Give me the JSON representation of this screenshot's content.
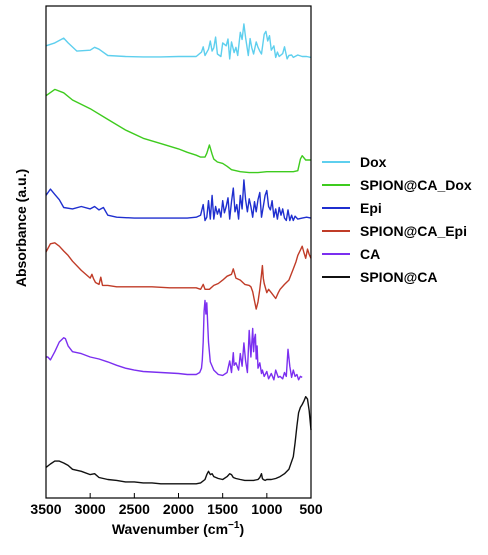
{
  "chart_data": {
    "type": "line",
    "xlabel": "Wavenumber (cm",
    "xlabel_sup": "−1",
    "xlabel_suffix": ")",
    "ylabel": "Absorbance (a.u.)",
    "xlim": [
      3500,
      500
    ],
    "x_reversed": true,
    "xticks": [
      3500,
      3000,
      2500,
      2000,
      1500,
      1000,
      500
    ],
    "ylim": [
      0,
      100
    ],
    "ytick_labels_shown": false,
    "legend_position": "right",
    "series": [
      {
        "name": "Dox",
        "color": "#5ecfee",
        "x": [
          3500,
          3400,
          3300,
          3250,
          3150,
          3000,
          2950,
          2900,
          2800,
          2600,
          2400,
          2200,
          2000,
          1800,
          1740,
          1720,
          1700,
          1660,
          1640,
          1620,
          1600,
          1580,
          1560,
          1520,
          1500,
          1460,
          1440,
          1420,
          1400,
          1370,
          1350,
          1330,
          1300,
          1280,
          1260,
          1240,
          1210,
          1190,
          1170,
          1150,
          1120,
          1100,
          1080,
          1060,
          1030,
          1010,
          990,
          970,
          950,
          920,
          900,
          880,
          860,
          820,
          800,
          770,
          750,
          720,
          700,
          650,
          600,
          550,
          500
        ],
        "y": [
          92.6,
          93.2,
          94.2,
          93.2,
          91.5,
          91.7,
          92.3,
          91.9,
          90.6,
          90.4,
          90.3,
          90.3,
          90.4,
          90.4,
          91.3,
          92.4,
          90.6,
          91.9,
          93.6,
          91.5,
          92.2,
          94.4,
          90.9,
          90.4,
          93.2,
          92.6,
          94.0,
          89.9,
          93.4,
          91.2,
          92.3,
          90.6,
          95.4,
          93.9,
          97.1,
          94.3,
          90.6,
          94.1,
          92.2,
          90.9,
          93.4,
          92.3,
          91.5,
          90.9,
          95.0,
          95.6,
          93.6,
          94.7,
          91.7,
          92.6,
          90.2,
          91.3,
          90.4,
          91.0,
          92.4,
          89.9,
          90.6,
          90.7,
          90.2,
          90.7,
          90.4,
          90.4,
          90.2
        ]
      },
      {
        "name": "SPION@CA_Dox",
        "color": "#3ecb1e",
        "x": [
          3500,
          3400,
          3300,
          3200,
          3000,
          2800,
          2600,
          2400,
          2200,
          2000,
          1900,
          1800,
          1750,
          1700,
          1680,
          1650,
          1640,
          1620,
          1600,
          1560,
          1500,
          1450,
          1400,
          1300,
          1200,
          1100,
          1000,
          900,
          800,
          700,
          650,
          620,
          600,
          560,
          500
        ],
        "y": [
          82.3,
          83.6,
          82.9,
          81.4,
          79.6,
          77.4,
          75.2,
          73.5,
          72.4,
          71.3,
          70.6,
          70.0,
          69.6,
          69.6,
          70.4,
          72.1,
          71.5,
          70.2,
          69.2,
          68.6,
          68.3,
          67.7,
          67.0,
          66.6,
          66.4,
          66.4,
          66.6,
          66.6,
          66.6,
          66.6,
          66.8,
          69.2,
          69.9,
          69.0,
          69.0
        ]
      },
      {
        "name": "Epi",
        "color": "#1f2fcf",
        "x": [
          3500,
          3450,
          3400,
          3350,
          3300,
          3200,
          3100,
          3000,
          2950,
          2900,
          2850,
          2800,
          2700,
          2500,
          2300,
          2100,
          1900,
          1800,
          1750,
          1720,
          1700,
          1680,
          1660,
          1640,
          1620,
          1600,
          1580,
          1560,
          1540,
          1520,
          1500,
          1480,
          1460,
          1440,
          1420,
          1400,
          1380,
          1360,
          1340,
          1320,
          1300,
          1280,
          1260,
          1240,
          1220,
          1200,
          1180,
          1160,
          1140,
          1120,
          1100,
          1080,
          1060,
          1040,
          1020,
          1000,
          980,
          960,
          940,
          920,
          900,
          880,
          860,
          840,
          820,
          800,
          780,
          760,
          740,
          720,
          700,
          680,
          650,
          600,
          550,
          500
        ],
        "y": [
          61.7,
          63.0,
          61.9,
          60.8,
          59.2,
          58.9,
          59.4,
          58.9,
          59.4,
          58.7,
          59.2,
          57.6,
          57.2,
          57.0,
          57.0,
          57.0,
          57.0,
          57.2,
          57.6,
          59.8,
          56.5,
          57.2,
          60.6,
          56.8,
          61.7,
          56.8,
          59.4,
          57.8,
          58.9,
          57.2,
          60.6,
          58.1,
          59.4,
          61.2,
          56.8,
          60.4,
          63.2,
          58.3,
          59.8,
          56.8,
          61.7,
          58.9,
          64.9,
          60.8,
          58.3,
          61.0,
          59.4,
          57.2,
          60.4,
          58.3,
          60.8,
          62.3,
          57.2,
          59.4,
          61.7,
          62.7,
          59.4,
          58.7,
          60.6,
          57.2,
          58.9,
          56.8,
          59.2,
          57.6,
          58.9,
          57.0,
          56.5,
          58.7,
          56.5,
          57.6,
          56.5,
          57.4,
          56.8,
          57.0,
          57.2,
          57.0
        ]
      },
      {
        "name": "SPION@CA_Epi",
        "color": "#c03c28",
        "x": [
          3500,
          3450,
          3400,
          3350,
          3300,
          3250,
          3200,
          3100,
          3000,
          2980,
          2960,
          2940,
          2900,
          2880,
          2860,
          2800,
          2700,
          2500,
          2300,
          2100,
          1900,
          1800,
          1750,
          1720,
          1700,
          1650,
          1600,
          1550,
          1500,
          1450,
          1400,
          1380,
          1350,
          1300,
          1250,
          1200,
          1180,
          1160,
          1140,
          1120,
          1100,
          1080,
          1060,
          1050,
          1040,
          1030,
          1000,
          980,
          950,
          900,
          870,
          850,
          800,
          750,
          700,
          670,
          650,
          620,
          600,
          580,
          560,
          540,
          520,
          500
        ],
        "y": [
          50.0,
          51.7,
          51.9,
          51.2,
          50.2,
          49.3,
          48.1,
          46.2,
          44.6,
          45.4,
          44.4,
          43.7,
          43.3,
          44.8,
          43.1,
          43.1,
          42.8,
          42.8,
          42.8,
          42.6,
          42.6,
          42.6,
          42.3,
          43.3,
          42.3,
          42.3,
          43.1,
          43.5,
          44.2,
          45.0,
          45.4,
          46.5,
          44.6,
          44.2,
          43.3,
          43.1,
          42.8,
          41.8,
          39.9,
          38.2,
          39.7,
          42.3,
          45.4,
          47.2,
          44.6,
          43.5,
          41.6,
          42.3,
          41.6,
          40.4,
          41.6,
          42.3,
          43.3,
          44.2,
          46.5,
          48.0,
          49.3,
          50.4,
          51.2,
          49.9,
          48.7,
          50.6,
          49.5,
          48.7
        ]
      },
      {
        "name": "CA",
        "color": "#7b2ff0",
        "x": [
          3500,
          3480,
          3450,
          3400,
          3350,
          3300,
          3280,
          3250,
          3200,
          3100,
          3000,
          2900,
          2800,
          2700,
          2600,
          2500,
          2400,
          2200,
          2000,
          1900,
          1800,
          1760,
          1740,
          1730,
          1720,
          1710,
          1700,
          1690,
          1680,
          1670,
          1660,
          1640,
          1600,
          1550,
          1500,
          1450,
          1420,
          1400,
          1380,
          1370,
          1350,
          1320,
          1300,
          1280,
          1260,
          1240,
          1220,
          1200,
          1180,
          1160,
          1150,
          1140,
          1130,
          1120,
          1110,
          1100,
          1080,
          1060,
          1050,
          1030,
          1000,
          980,
          950,
          920,
          900,
          870,
          850,
          820,
          800,
          780,
          760,
          740,
          720,
          700,
          680,
          660,
          640,
          620,
          600
        ],
        "y": [
          28.3,
          28.3,
          27.7,
          29.4,
          31.4,
          32.3,
          32.1,
          30.6,
          29.4,
          29.0,
          28.3,
          27.9,
          27.3,
          26.6,
          26.0,
          25.6,
          25.3,
          25.1,
          24.9,
          24.7,
          24.7,
          25.1,
          26.0,
          27.7,
          31.4,
          37.8,
          40.0,
          37.2,
          39.5,
          35.1,
          31.4,
          27.3,
          25.6,
          24.7,
          24.5,
          25.1,
          27.5,
          25.1,
          29.2,
          26.6,
          27.1,
          25.6,
          29.0,
          26.4,
          31.2,
          27.5,
          25.1,
          33.8,
          28.3,
          34.2,
          29.4,
          32.1,
          33.0,
          27.9,
          30.6,
          26.0,
          27.1,
          24.9,
          25.6,
          24.3,
          25.3,
          23.8,
          24.9,
          23.6,
          25.6,
          24.1,
          24.3,
          23.8,
          25.1,
          24.3,
          29.9,
          26.4,
          24.1,
          25.6,
          24.3,
          24.7,
          23.6,
          24.3,
          24.1
        ]
      },
      {
        "name": "SPION@CA",
        "color": "#111111",
        "x": [
          3500,
          3450,
          3400,
          3350,
          3300,
          3250,
          3200,
          3100,
          3000,
          2950,
          2900,
          2800,
          2700,
          2600,
          2500,
          2400,
          2300,
          2200,
          2100,
          2000,
          1900,
          1800,
          1750,
          1700,
          1680,
          1660,
          1640,
          1620,
          1600,
          1550,
          1500,
          1450,
          1420,
          1400,
          1380,
          1350,
          1300,
          1250,
          1200,
          1150,
          1100,
          1080,
          1060,
          1050,
          1040,
          1020,
          1000,
          950,
          900,
          850,
          800,
          750,
          700,
          680,
          660,
          640,
          620,
          600,
          580,
          560,
          540,
          520,
          500
        ],
        "y": [
          5.5,
          6.2,
          6.8,
          6.8,
          6.4,
          5.9,
          5.1,
          4.7,
          4.0,
          4.2,
          3.4,
          3.0,
          2.8,
          2.5,
          2.5,
          2.3,
          2.3,
          2.1,
          2.1,
          2.1,
          2.1,
          2.1,
          2.3,
          3.0,
          4.0,
          4.7,
          4.0,
          4.2,
          3.6,
          3.2,
          3.0,
          3.6,
          4.2,
          4.0,
          3.4,
          3.2,
          3.0,
          2.8,
          2.8,
          2.8,
          3.0,
          3.4,
          4.2,
          3.2,
          3.0,
          2.8,
          3.0,
          3.0,
          3.2,
          3.6,
          4.2,
          5.1,
          7.7,
          10.6,
          14.0,
          16.8,
          17.9,
          18.5,
          19.2,
          20.1,
          19.6,
          17.2,
          13.2
        ]
      }
    ]
  }
}
